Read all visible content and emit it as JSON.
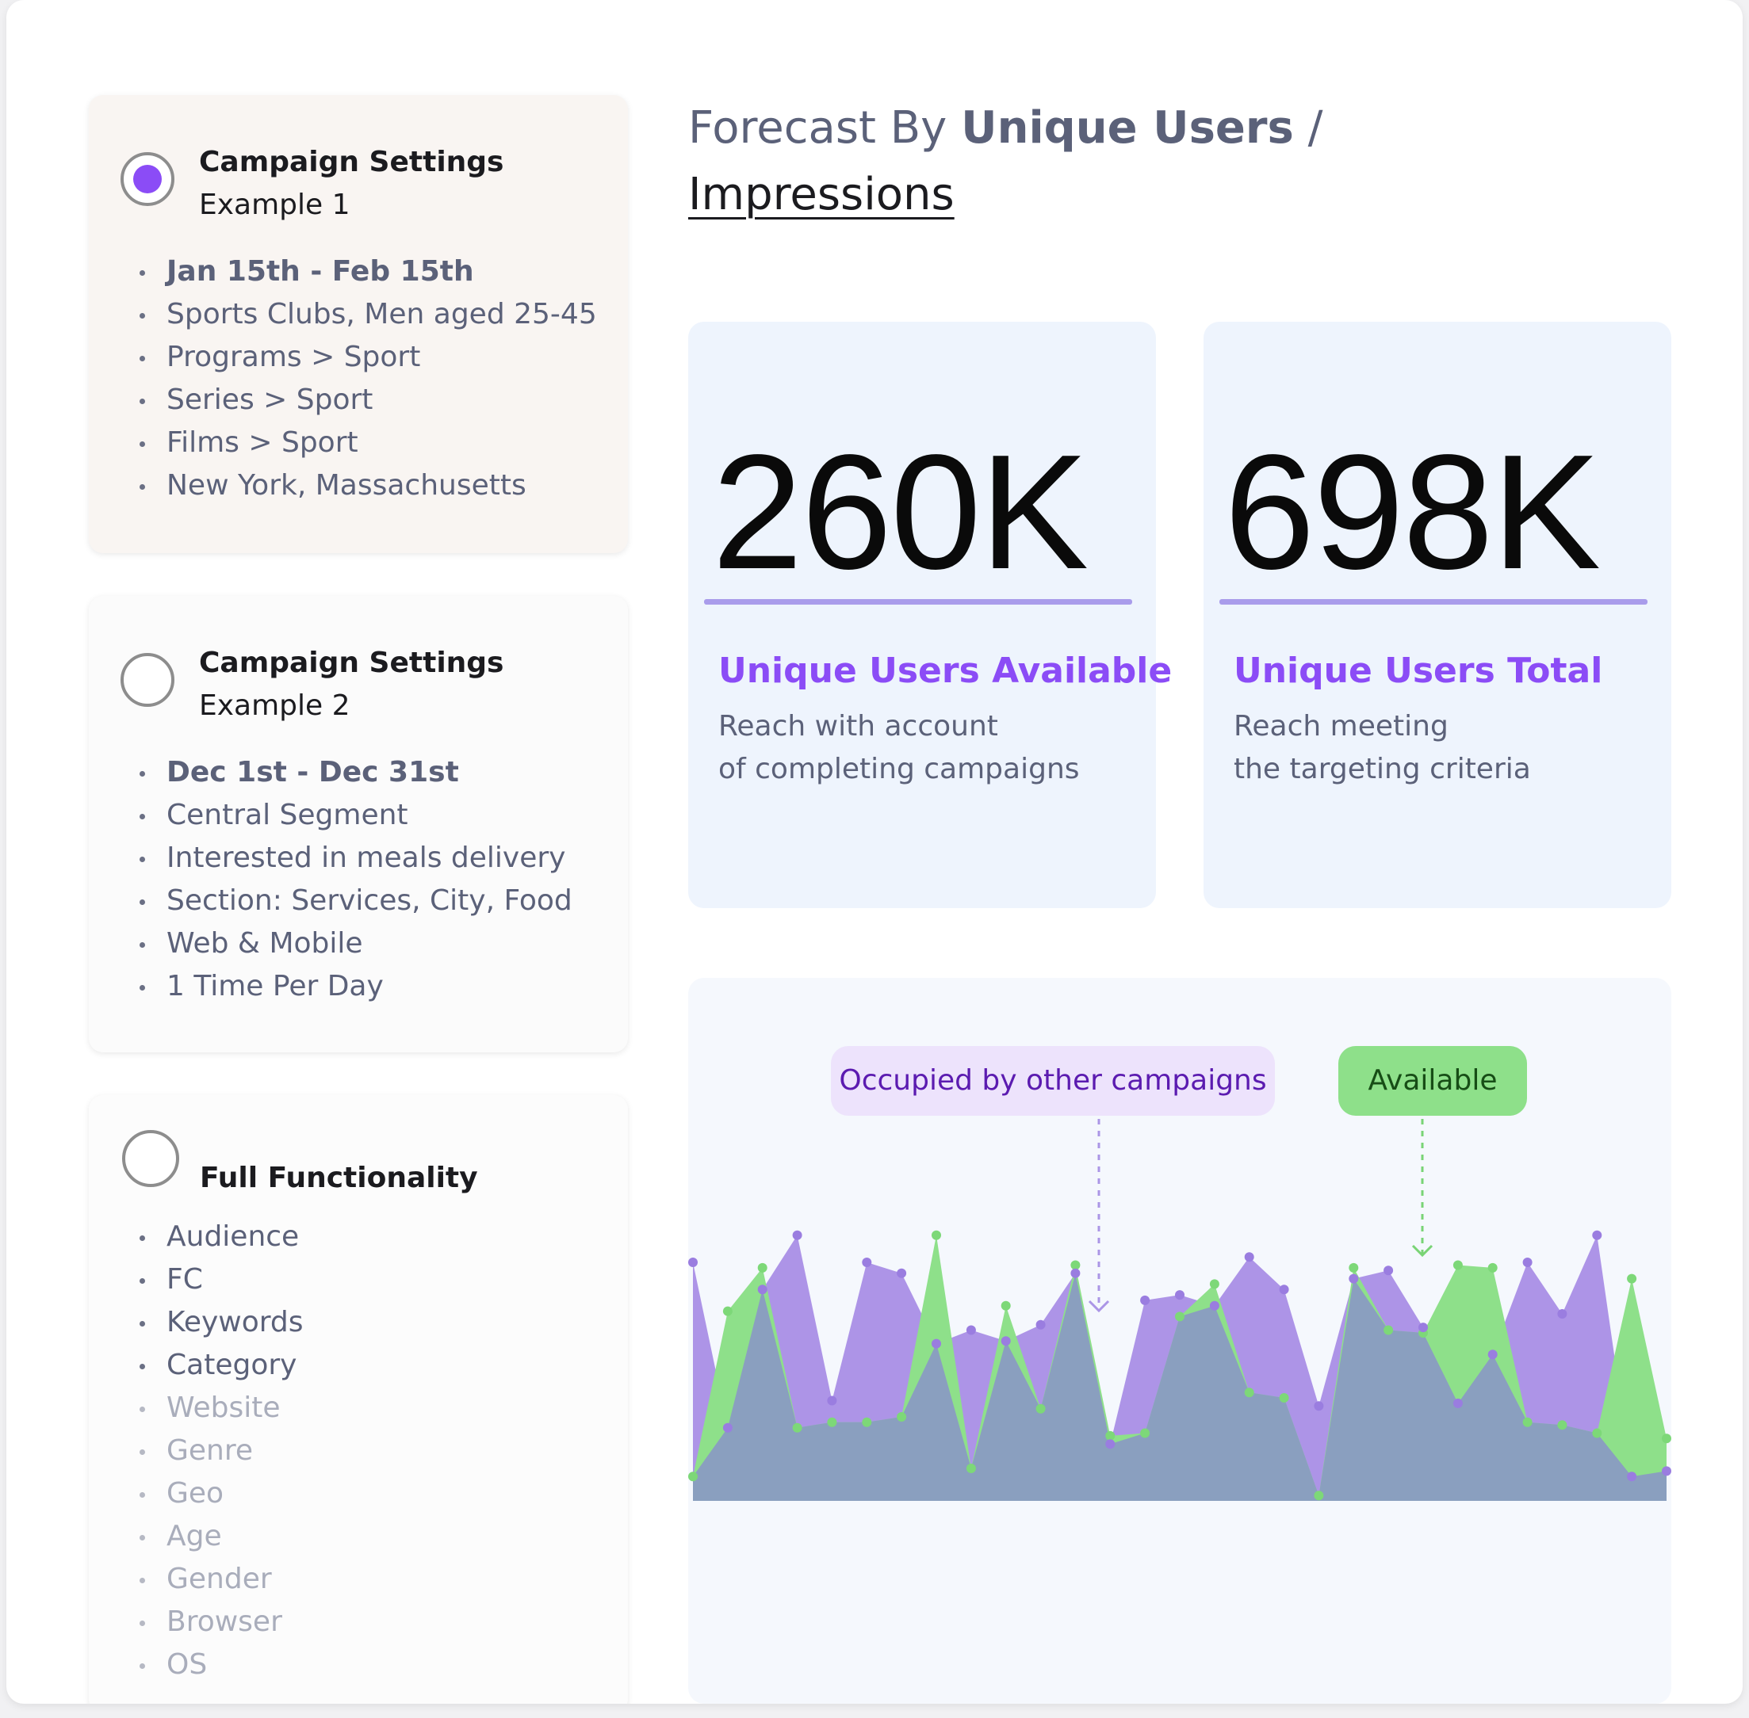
{
  "panels": [
    {
      "title": "Campaign Settings",
      "subtitle": "Example 1",
      "selected": true,
      "items": [
        "Jan 15th - Feb 15th",
        "Sports Clubs, Men aged 25-45",
        "Programs > Sport",
        "Series > Sport",
        "Films > Sport",
        "New York, Massachusetts"
      ]
    },
    {
      "title": "Campaign Settings",
      "subtitle": "Example 2",
      "selected": false,
      "items": [
        "Dec 1st - Dec 31st",
        "Central Segment",
        "Interested in meals delivery",
        "Section: Services, City, Food",
        "Web & Mobile",
        "1 Time Per Day"
      ]
    },
    {
      "title": "Full Functionality",
      "selected": false,
      "items": [
        "Audience",
        "FC",
        "Keywords",
        "Category",
        "Website",
        "Genre",
        "Geo",
        "Age",
        "Gender",
        "Browser",
        "OS"
      ]
    }
  ],
  "forecast": {
    "prefix": "Forecast By",
    "unique_users": "Unique Users",
    "separator": "/",
    "impressions": "Impressions"
  },
  "stats": [
    {
      "value": "260K",
      "label": "Unique Users Available",
      "desc_line1": "Reach with account",
      "desc_line2": "of completing campaigns"
    },
    {
      "value": "698K",
      "label": "Unique Users Total",
      "desc_line1": "Reach meeting",
      "desc_line2": "the targeting criteria"
    }
  ],
  "legend": {
    "occupied": "Occupied by other campaigns",
    "available": "Available"
  },
  "colors": {
    "accent_purple": "#8b4cf6",
    "occupied_fill": "#a98ee6",
    "available_fill": "#8ee08a",
    "overlap_fill": "#8a9fbf"
  },
  "chart_data": {
    "type": "area",
    "ylim": [
      0,
      100
    ],
    "series": [
      {
        "key": "occupied",
        "values": [
          88,
          27,
          78,
          98,
          37,
          88,
          84,
          58,
          63,
          59,
          65,
          84,
          21,
          74,
          76,
          72,
          90,
          78,
          35,
          82,
          85,
          64,
          36,
          54,
          88,
          69,
          98,
          9,
          11
        ]
      },
      {
        "key": "available",
        "values": [
          9,
          70,
          86,
          27,
          29,
          29,
          31,
          98,
          12,
          72,
          34,
          87,
          24,
          25,
          68,
          80,
          40,
          38,
          2,
          86,
          63,
          62,
          87,
          86,
          29,
          28,
          25,
          82,
          23
        ]
      }
    ]
  }
}
